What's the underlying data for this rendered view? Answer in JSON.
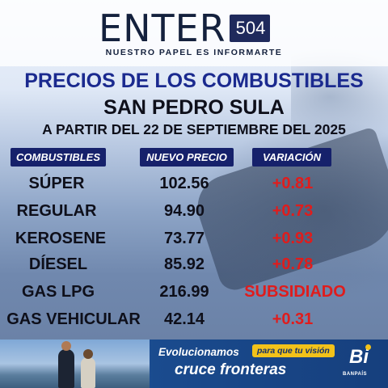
{
  "header": {
    "logo_text": "ENTER",
    "logo_number": "504",
    "tagline": "NUESTRO PAPEL ES INFORMARTE"
  },
  "titles": {
    "line1": "PRECIOS DE LOS COMBUSTIBLES",
    "line2": "SAN PEDRO SULA",
    "line3": "A PARTIR DEL 22 DE SEPTIEMBRE DEL 2025"
  },
  "table": {
    "headers": [
      "COMBUSTIBLES",
      "NUEVO PRECIO",
      "VARIACIÓN"
    ],
    "rows": [
      {
        "fuel": "SÚPER",
        "price": "102.56",
        "variation": "+0.81"
      },
      {
        "fuel": "REGULAR",
        "price": "94.90",
        "variation": "+0.73"
      },
      {
        "fuel": "KEROSENE",
        "price": "73.77",
        "variation": "+0.93"
      },
      {
        "fuel": "DÍESEL",
        "price": "85.92",
        "variation": "+0.78"
      },
      {
        "fuel": "GAS LPG",
        "price": "216.99",
        "variation": "SUBSIDIADO"
      },
      {
        "fuel": "GAS VEHICULAR",
        "price": "42.14",
        "variation": "+0.31"
      }
    ]
  },
  "ad": {
    "text1": "Evolucionamos",
    "pill": "para que tu visión",
    "text2": "cruce fronteras",
    "brand": "Bi",
    "brand_name": "BANPAÍS"
  },
  "colors": {
    "title_blue": "#1b2a8f",
    "header_navy": "#16216b",
    "variation_red": "#e01c1c"
  }
}
